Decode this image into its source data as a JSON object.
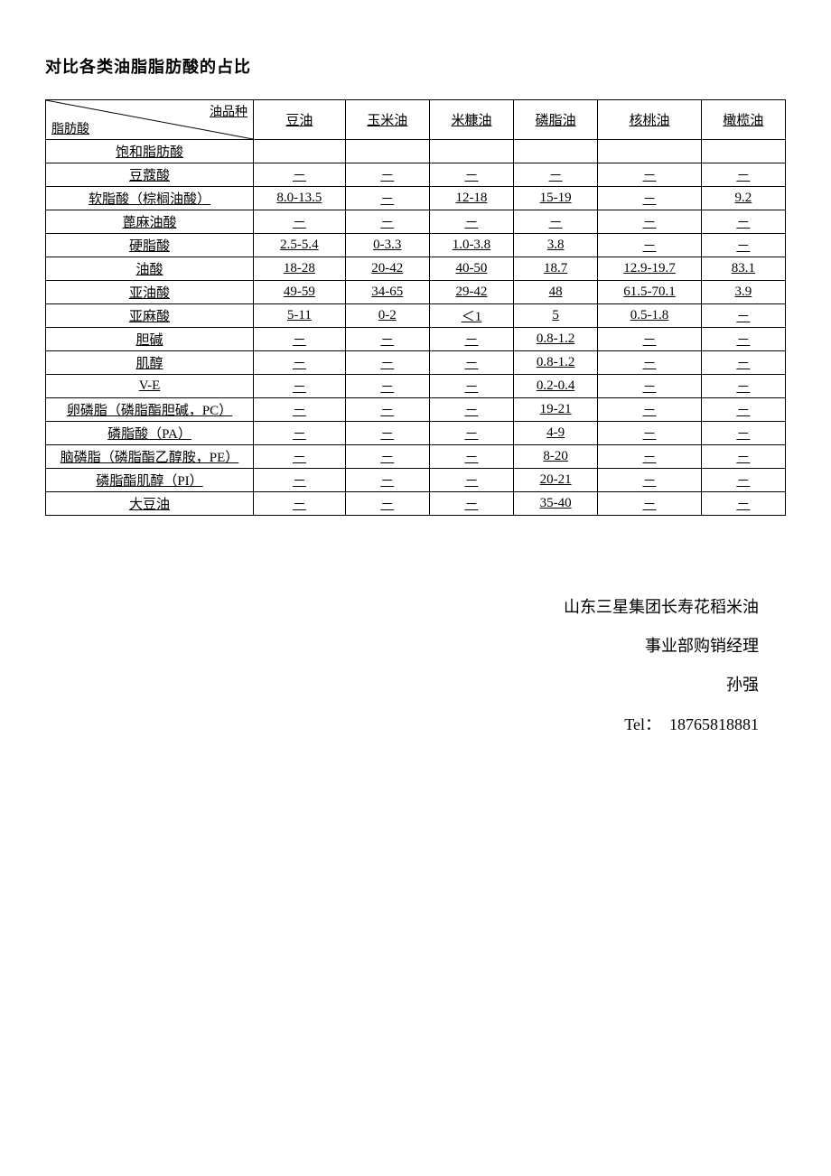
{
  "title": "对比各类油脂脂肪酸的占比",
  "corner": {
    "top": "油品种",
    "bottom": "脂肪酸"
  },
  "columns": [
    "豆油",
    "玉米油",
    "米糠油",
    "磷脂油",
    "核桃油",
    "橄榄油"
  ],
  "rows": [
    {
      "label": "饱和脂肪酸",
      "vals": [
        "",
        "",
        "",
        "",
        "",
        ""
      ]
    },
    {
      "label": "豆蔻酸",
      "vals": [
        "－",
        "－",
        "－",
        "－",
        "－",
        "－"
      ]
    },
    {
      "label": "软脂酸（棕榈油酸）",
      "vals": [
        "8.0-13.5",
        "－",
        "12-18",
        "15-19",
        "－",
        "9.2"
      ]
    },
    {
      "label": "蓖麻油酸",
      "vals": [
        "－",
        "－",
        "－",
        "－",
        "－",
        "－"
      ]
    },
    {
      "label": "硬脂酸",
      "vals": [
        "2.5-5.4",
        "0-3.3",
        "1.0-3.8",
        "3.8",
        "－",
        "－"
      ]
    },
    {
      "label": "油酸",
      "vals": [
        "18-28",
        "20-42",
        "40-50",
        "18.7",
        "12.9-19.7",
        "83.1"
      ]
    },
    {
      "label": "亚油酸",
      "vals": [
        "49-59",
        "34-65",
        "29-42",
        "48",
        "61.5-70.1",
        "3.9"
      ]
    },
    {
      "label": "亚麻酸",
      "vals": [
        "5-11",
        "0-2",
        "＜1",
        "5",
        "0.5-1.8",
        "－"
      ]
    },
    {
      "label": "胆碱",
      "vals": [
        "－",
        "－",
        "－",
        "0.8-1.2",
        "－",
        "－"
      ]
    },
    {
      "label": "肌醇",
      "vals": [
        "－",
        "－",
        "－",
        "0.8-1.2",
        "－",
        "－"
      ]
    },
    {
      "label": "V-E",
      "vals": [
        "－",
        "－",
        "－",
        "0.2-0.4",
        "－",
        "－"
      ]
    },
    {
      "label": "卵磷脂（磷脂酯胆碱，PC）",
      "vals": [
        "－",
        "－",
        "－",
        "19-21",
        "－",
        "－"
      ]
    },
    {
      "label": "磷脂酸（PA）",
      "vals": [
        "－",
        "－",
        "－",
        "4-9",
        "－",
        "－"
      ]
    },
    {
      "label": "脑磷脂（磷脂酯乙醇胺，PE）",
      "vals": [
        "－",
        "－",
        "－",
        "8-20",
        "－",
        "－"
      ]
    },
    {
      "label": "磷脂酯肌醇（PI）",
      "vals": [
        "－",
        "－",
        "－",
        "20-21",
        "－",
        "－"
      ]
    },
    {
      "label": "大豆油",
      "vals": [
        "－",
        "－",
        "－",
        "35-40",
        "－",
        "－"
      ]
    }
  ],
  "signature": {
    "line1": "山东三星集团长寿花稻米油",
    "line2": "事业部购销经理",
    "line3": "孙强",
    "tel_label": "Tel：",
    "tel_value": "18765818881"
  }
}
